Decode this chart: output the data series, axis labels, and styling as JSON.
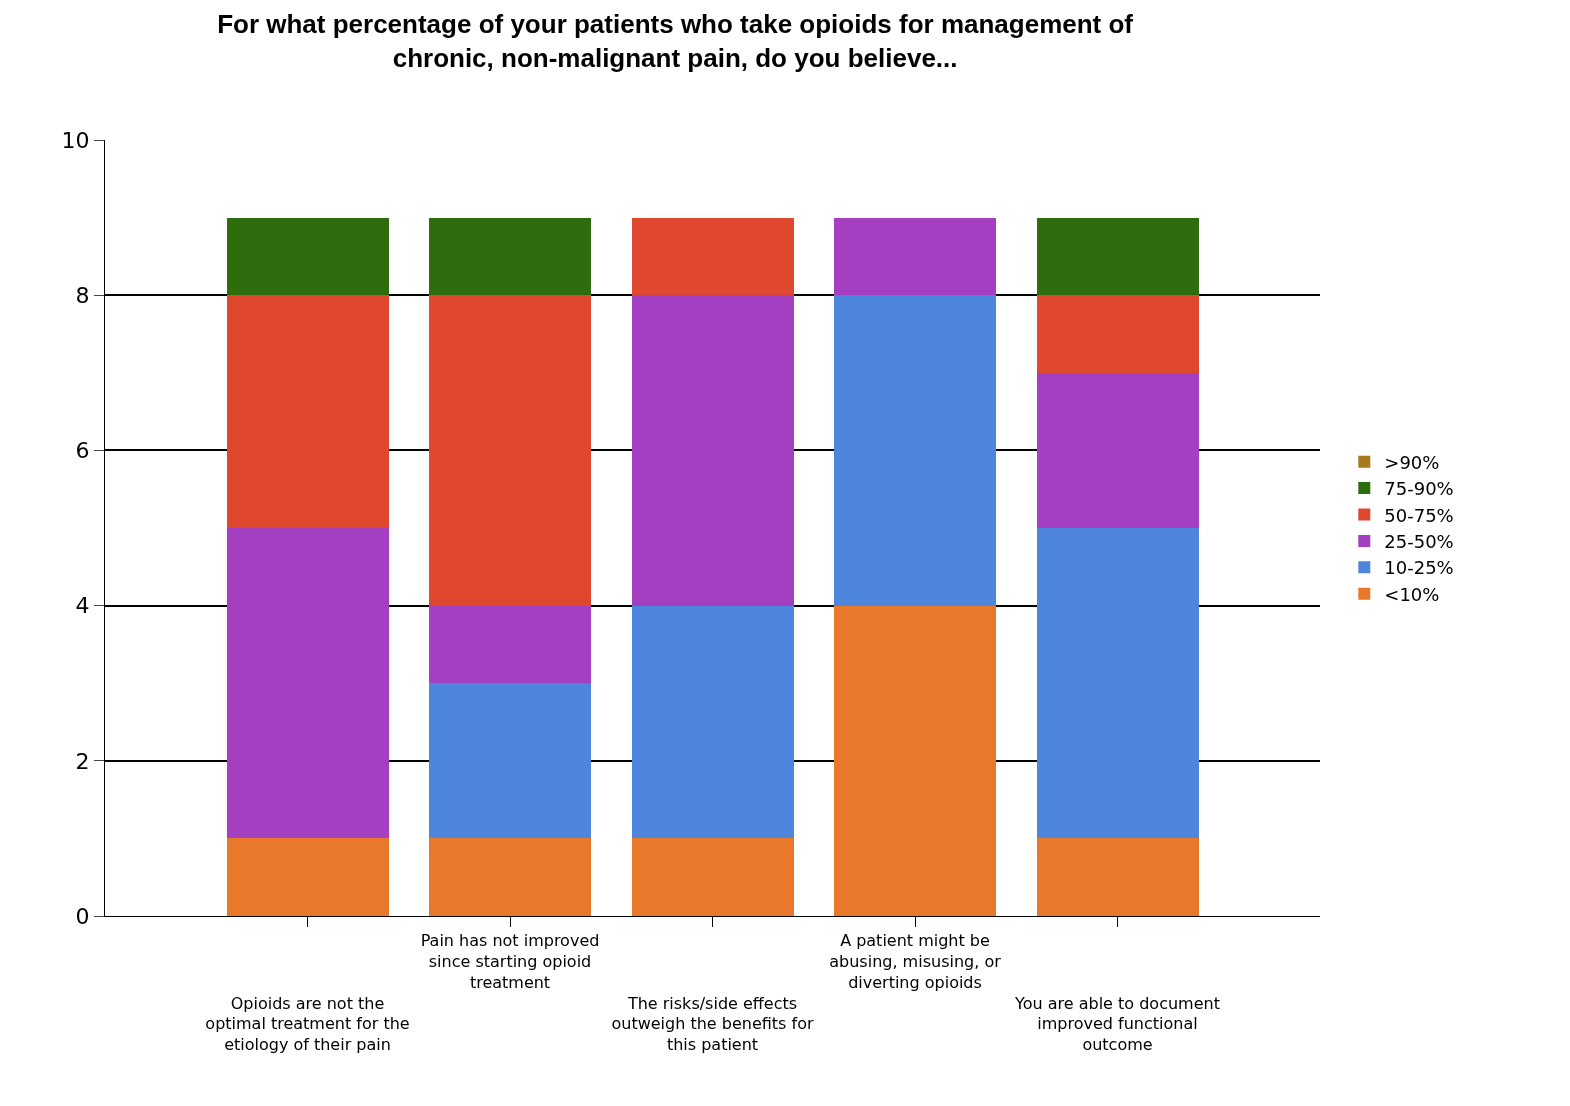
{
  "chart_data": {
    "type": "bar",
    "title": "For what percentage of your patients who take opioids for management of chronic, non-malignant pain, do you believe...",
    "categories": [
      "Opioids are not the optimal treatment for the etiology of their pain",
      "Pain has not improved since starting opioid treatment",
      "The risks/side effects outweigh the benefits for this patient",
      "A patient might be abusing, misusing, or diverting opioids",
      "You are able to document improved functional outcome"
    ],
    "stacked": true,
    "series": [
      {
        "name": "<10%",
        "color": "#e8792a",
        "values": [
          1,
          1,
          1,
          4,
          1
        ]
      },
      {
        "name": "10-25%",
        "color": "#4f86dd",
        "values": [
          0,
          2,
          3,
          4,
          4
        ]
      },
      {
        "name": "25-50%",
        "color": "#a33fc0",
        "values": [
          4,
          1,
          4,
          1,
          2
        ]
      },
      {
        "name": "50-75%",
        "color": "#e0472f",
        "values": [
          3,
          4,
          1,
          0,
          1
        ]
      },
      {
        "name": "75-90%",
        "color": "#2e6d0e",
        "values": [
          1,
          1,
          0,
          0,
          1
        ]
      },
      {
        "name": ">90%",
        "color": "#a77a1e",
        "values": [
          0,
          0,
          0,
          0,
          0
        ]
      }
    ],
    "ylim": [
      0,
      10
    ],
    "yticks": [
      0,
      2,
      4,
      6,
      8,
      10
    ],
    "grid": "y",
    "legend": "right"
  }
}
